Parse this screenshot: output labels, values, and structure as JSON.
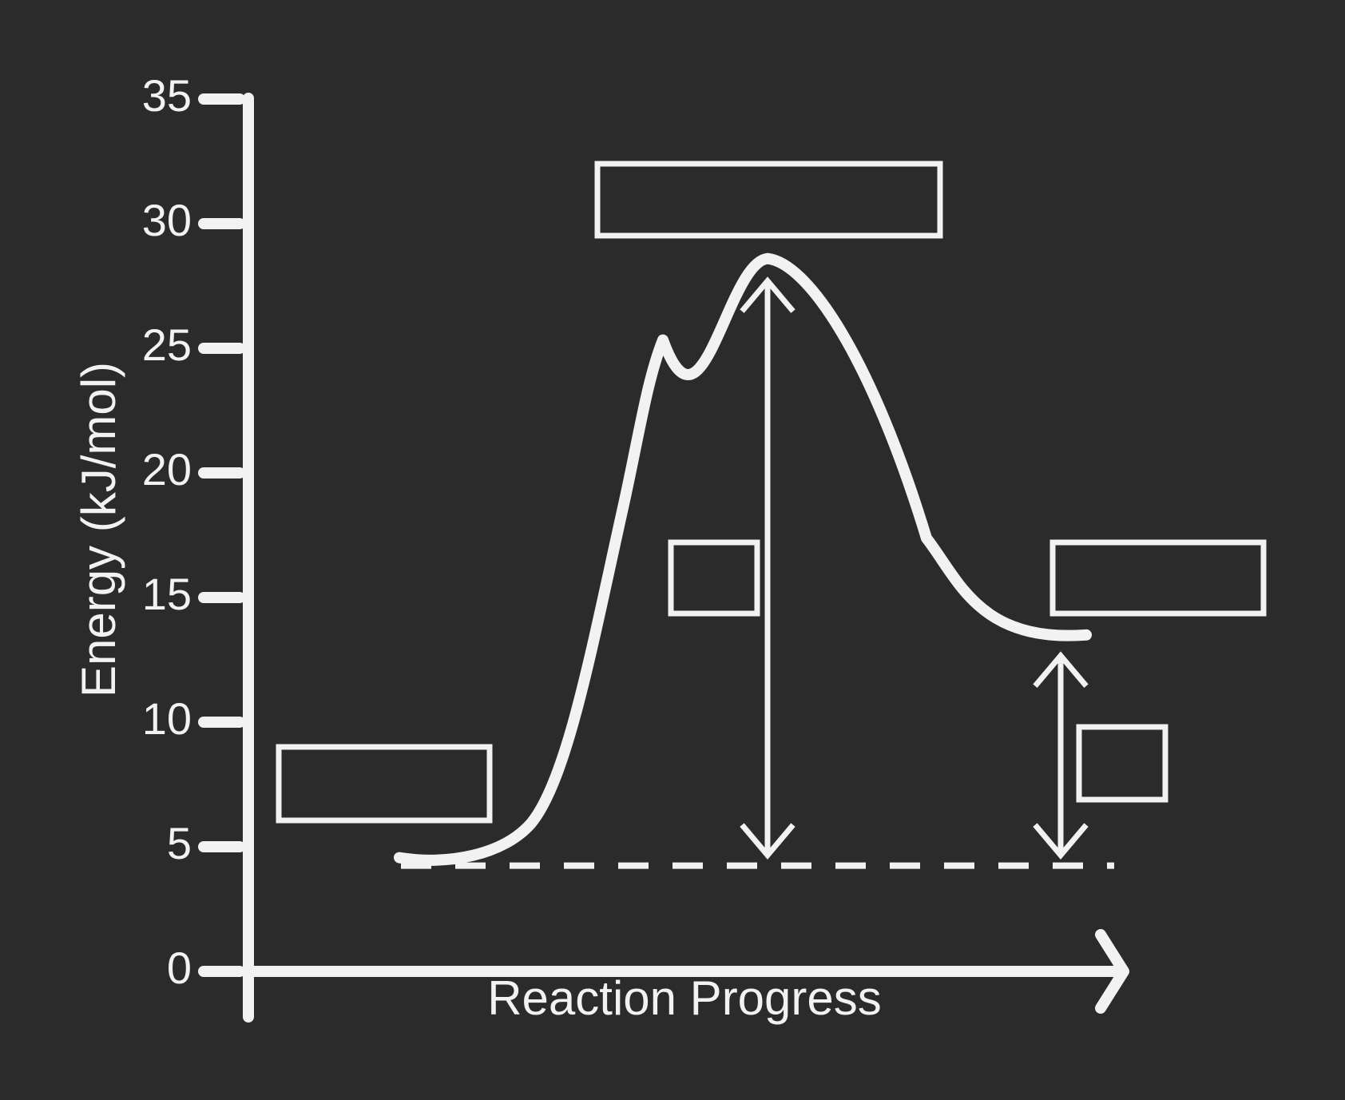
{
  "diagram": {
    "colors": {
      "background": "#2b2b2b",
      "ink": "#f2f2f2"
    },
    "y_axis": {
      "title": "Energy (kJ/mol)",
      "ticks": [
        "0",
        "5",
        "10",
        "15",
        "20",
        "25",
        "30",
        "35"
      ]
    },
    "x_axis": {
      "title": "Reaction Progress"
    },
    "energy_profile": {
      "reactants_energy": 4.5,
      "transition_state_energy": 28.6,
      "products_energy": 13.5
    },
    "answer_boxes": [
      {
        "role": "reactants",
        "text": ""
      },
      {
        "role": "transition-state",
        "text": ""
      },
      {
        "role": "activation-energy",
        "text": ""
      },
      {
        "role": "products",
        "text": ""
      },
      {
        "role": "reaction-enthalpy",
        "text": ""
      }
    ]
  }
}
